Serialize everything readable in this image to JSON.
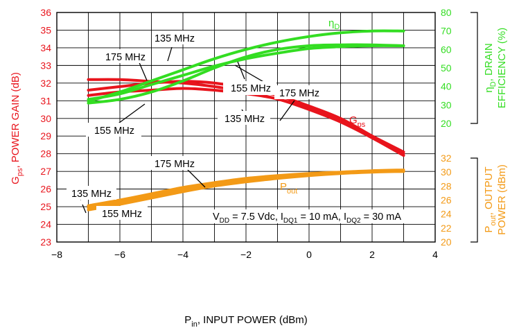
{
  "chart_data": {
    "type": "line",
    "xlabel": "P",
    "xlabel_sub": "in",
    "xlabel_rest": ", INPUT POWER (dBm)",
    "x_ticks": [
      "−8",
      "−6",
      "−4",
      "−2",
      "0",
      "2",
      "4"
    ],
    "xlim": [
      -8,
      4
    ],
    "y_left": {
      "label_main": "G",
      "label_sub": "ps",
      "label_rest": ", POWER GAIN (dB)",
      "ylim": [
        23,
        36
      ],
      "ticks": [
        "23",
        "24",
        "25",
        "26",
        "27",
        "28",
        "29",
        "30",
        "31",
        "32",
        "33",
        "34",
        "35",
        "36"
      ],
      "color": "#e8141c"
    },
    "y_right_top": {
      "label_line1_greek": "η",
      "label_line1_sub": "D",
      "label_line1_rest": ", DRAIN",
      "label_line2": "EFFICIENCY (%)",
      "ylim": [
        20,
        80
      ],
      "ticks": [
        "20",
        "30",
        "40",
        "50",
        "60",
        "70",
        "80"
      ],
      "color": "#33dd22"
    },
    "y_right_bottom": {
      "label_line1_main": "P",
      "label_line1_sub": "out",
      "label_line1_rest": ", OUTPUT",
      "label_line2": "POWER (dBm)",
      "ylim": [
        20,
        32
      ],
      "ticks": [
        "20",
        "22",
        "24",
        "26",
        "28",
        "30",
        "32"
      ],
      "color": "#f39a16"
    },
    "grid": true,
    "series_groups": [
      {
        "name": "Gps",
        "axis": "left",
        "color": "#e8141c",
        "series": [
          {
            "name": "135 MHz",
            "x": [
              -7,
              -6,
              -5,
              -4,
              -3,
              -2,
              -1,
              0,
              1,
              2,
              3
            ],
            "y": [
              31.6,
              31.8,
              32.0,
              32.1,
              32.0,
              31.7,
              31.3,
              30.7,
              30.0,
              29.0,
              28.0
            ]
          },
          {
            "name": "155 MHz",
            "x": [
              -7,
              -6,
              -5,
              -4,
              -3,
              -2,
              -1,
              0,
              1,
              2,
              3
            ],
            "y": [
              31.3,
              31.5,
              31.6,
              31.7,
              31.6,
              31.4,
              31.1,
              30.5,
              29.8,
              28.9,
              27.9
            ]
          },
          {
            "name": "175 MHz",
            "x": [
              -7,
              -6,
              -5,
              -4,
              -3,
              -2,
              -1,
              0,
              1,
              2,
              3
            ],
            "y": [
              32.2,
              32.2,
              32.1,
              32.0,
              31.8,
              31.5,
              31.1,
              30.6,
              29.9,
              29.0,
              28.1
            ]
          }
        ]
      },
      {
        "name": "ηD",
        "axis": "right_top",
        "color": "#33dd22",
        "series": [
          {
            "name": "135 MHz",
            "x": [
              -7,
              -6,
              -5,
              -4,
              -3,
              -2,
              -1,
              0,
              1,
              2,
              3
            ],
            "y": [
              32,
              37,
              43,
              49,
              55,
              60,
              64,
              67,
              69,
              70,
              70
            ]
          },
          {
            "name": "155 MHz",
            "x": [
              -7,
              -6,
              -5,
              -4,
              -3,
              -2,
              -1,
              0,
              1,
              2,
              3
            ],
            "y": [
              31,
              33,
              37,
              43,
              50,
              56,
              60,
              62,
              62.5,
              62.5,
              62
            ]
          },
          {
            "name": "175 MHz",
            "x": [
              -7,
              -6,
              -5,
              -4,
              -3,
              -2,
              -1,
              0,
              1,
              2,
              3
            ],
            "y": [
              33,
              36,
              41,
              46,
              51,
              55,
              58,
              60.5,
              61.5,
              62,
              62
            ]
          }
        ]
      },
      {
        "name": "Pout",
        "axis": "right_bottom",
        "color": "#f39a16",
        "series": [
          {
            "name": "135 MHz",
            "x": [
              -7,
              -6,
              -5,
              -4,
              -3,
              -2,
              -1,
              0,
              1,
              2,
              3
            ],
            "y": [
              24.9,
              25.7,
              26.6,
              27.5,
              28.3,
              28.9,
              29.4,
              29.7,
              29.9,
              30.1,
              30.1
            ]
          },
          {
            "name": "155 MHz",
            "x": [
              -7,
              -6,
              -5,
              -4,
              -3,
              -2,
              -1,
              0,
              1,
              2,
              3
            ],
            "y": [
              24.6,
              25.4,
              26.3,
              27.2,
              28.0,
              28.6,
              29.1,
              29.5,
              29.8,
              30.0,
              30.1
            ]
          },
          {
            "name": "175 MHz",
            "x": [
              -7,
              -6,
              -5,
              -4,
              -3,
              -2,
              -1,
              0,
              1,
              2,
              3
            ],
            "y": [
              25.2,
              26.0,
              26.9,
              27.8,
              28.5,
              29.1,
              29.5,
              29.8,
              30.0,
              30.2,
              30.3
            ]
          }
        ]
      }
    ],
    "series_labels": {
      "gps": {
        "main": "G",
        "sub": "ps"
      },
      "eta": {
        "main": "η",
        "sub": "D"
      },
      "pout": {
        "main": "P",
        "sub": "out"
      }
    },
    "annotations": {
      "eff_135": "135 MHz",
      "eff_175": "175 MHz",
      "eff_155": "155 MHz",
      "gain_175": "175 MHz",
      "gain_155": "155 MHz",
      "gain_135": "135 MHz",
      "pout_175": "175 MHz",
      "pout_135": "135 MHz",
      "pout_155": "155 MHz"
    },
    "conditions": {
      "vdd_main": "V",
      "vdd_sub": "DD",
      "vdd_rest": " = 7.5 Vdc, I",
      "idq1_sub": "DQ1",
      "idq1_rest": " = 10 mA, I",
      "idq2_sub": "DQ2",
      "idq2_rest": " = 30 mA"
    }
  }
}
